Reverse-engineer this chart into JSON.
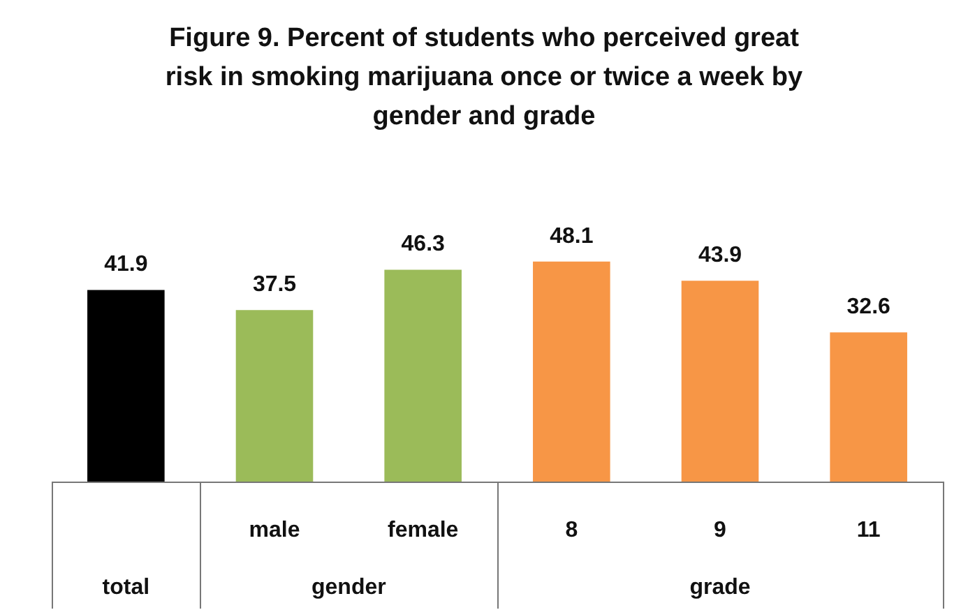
{
  "chart_data": {
    "type": "bar",
    "title": "Figure 9. Percent of students who perceived great risk in smoking marijuana once or twice a week by gender and grade",
    "categories": [
      null,
      "male",
      "female",
      "8",
      "9",
      "11"
    ],
    "values": [
      41.9,
      37.5,
      46.3,
      48.1,
      43.9,
      32.6
    ],
    "colors": [
      "#000000",
      "#9bbb59",
      "#9bbb59",
      "#f79646",
      "#f79646",
      "#f79646"
    ],
    "data_labels": true,
    "legend": false,
    "annotations": [
      "total",
      "gender",
      "grade"
    ]
  }
}
